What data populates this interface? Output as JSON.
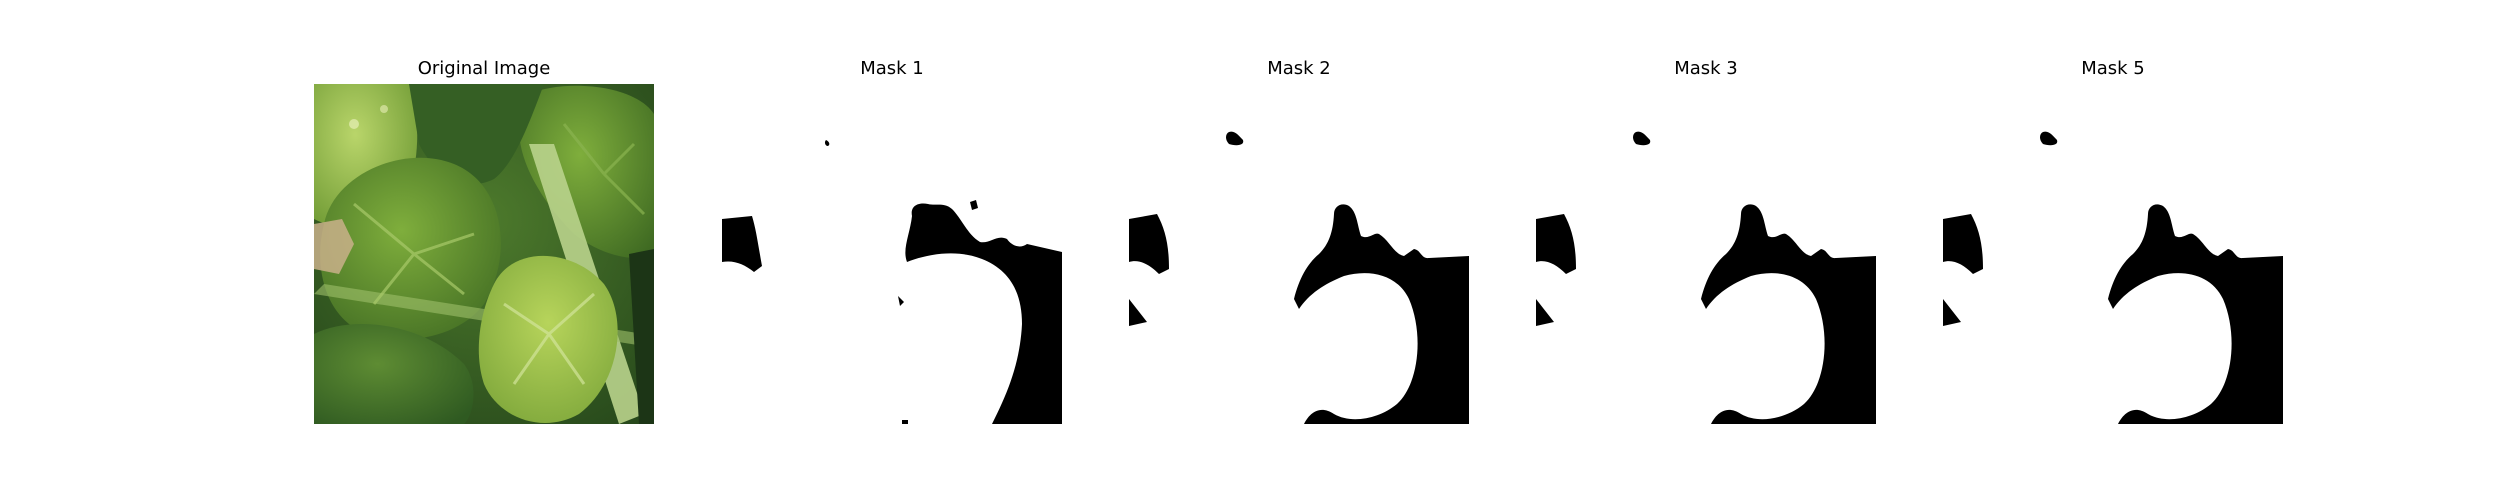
{
  "panels": [
    {
      "title": "Original Image"
    },
    {
      "title": "Mask 1"
    },
    {
      "title": "Mask 2"
    },
    {
      "title": "Mask 3"
    },
    {
      "title": "Mask 5"
    }
  ],
  "colors": {
    "background": "#ffffff",
    "mask_foreground": "#000000",
    "leaf_light": "#9cc24a",
    "leaf_mid": "#6f9a34",
    "leaf_dark": "#3f6a22",
    "stem": "#b9d38c"
  }
}
